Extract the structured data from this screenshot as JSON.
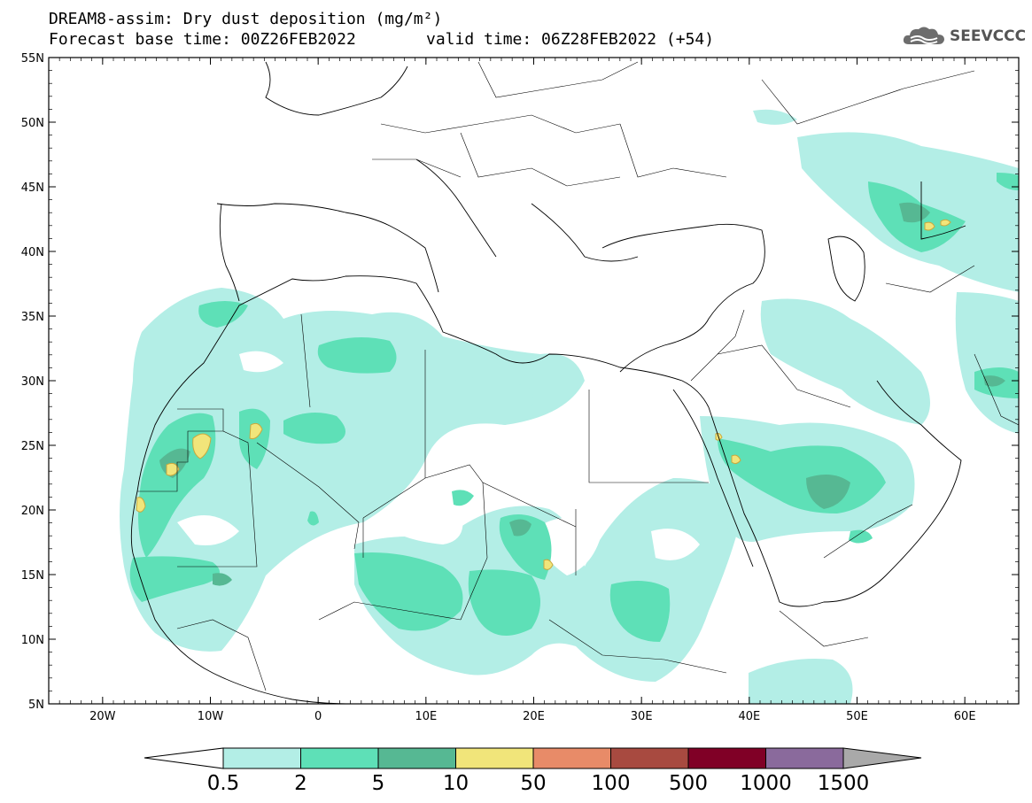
{
  "header": {
    "title_line1": "DREAM8-assim: Dry dust deposition (mg/m²)",
    "title_line2_left": "Forecast base time: 00Z26FEB2022",
    "title_line2_right": "valid time: 06Z28FEB2022 (+54)",
    "logo_text": "SEEVCCC",
    "logo_icon": "cloud-icon"
  },
  "map": {
    "lon_range": [
      -25,
      65
    ],
    "lat_range": [
      5,
      55
    ],
    "lat_ticks": [
      "55N",
      "50N",
      "45N",
      "40N",
      "35N",
      "30N",
      "25N",
      "20N",
      "15N",
      "10N",
      "5N"
    ],
    "lon_ticks": [
      "20W",
      "10W",
      "0",
      "10E",
      "20E",
      "30E",
      "40E",
      "50E",
      "60E"
    ]
  },
  "colorbar": {
    "labels": [
      "0.5",
      "2",
      "5",
      "10",
      "50",
      "100",
      "500",
      "1000",
      "1500"
    ],
    "colors": [
      "#b3eee6",
      "#5ee0b7",
      "#56b893",
      "#f1e57a",
      "#e88b68",
      "#a84a40",
      "#800026",
      "#8a6a9c",
      "#a9a9a9"
    ],
    "under_color": "#ffffff",
    "over_color": "#a9a9a9"
  }
}
